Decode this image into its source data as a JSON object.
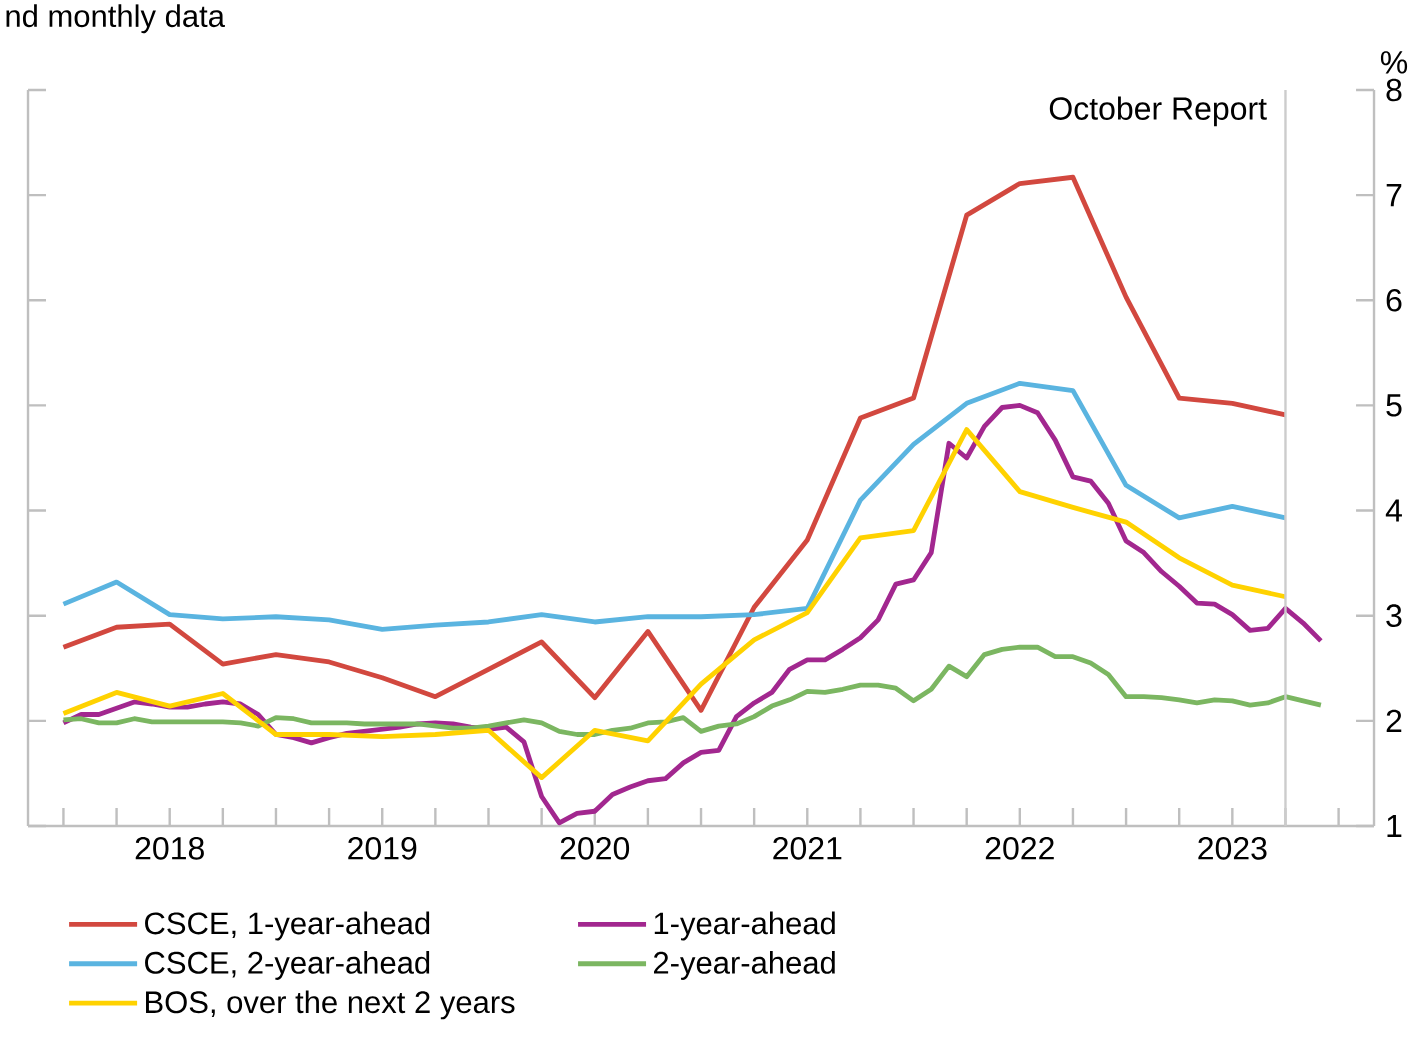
{
  "chart_data": {
    "type": "line",
    "subtitle": "nd monthly data",
    "ylabel": "%",
    "xlim": [
      "2017-11",
      "2024-03"
    ],
    "ylim": [
      1,
      8
    ],
    "yticks": [
      1,
      2,
      3,
      4,
      5,
      6,
      7,
      8
    ],
    "xticks": [
      {
        "value": "2018-01",
        "label": null
      },
      {
        "value": "2018-04",
        "label": null
      },
      {
        "value": "2018-07",
        "label": "2018"
      },
      {
        "value": "2018-10",
        "label": null
      },
      {
        "value": "2019-01",
        "label": null
      },
      {
        "value": "2019-04",
        "label": null
      },
      {
        "value": "2019-07",
        "label": "2019"
      },
      {
        "value": "2019-10",
        "label": null
      },
      {
        "value": "2020-01",
        "label": null
      },
      {
        "value": "2020-04",
        "label": null
      },
      {
        "value": "2020-07",
        "label": "2020"
      },
      {
        "value": "2020-10",
        "label": null
      },
      {
        "value": "2021-01",
        "label": null
      },
      {
        "value": "2021-04",
        "label": null
      },
      {
        "value": "2021-07",
        "label": "2021"
      },
      {
        "value": "2021-10",
        "label": null
      },
      {
        "value": "2022-01",
        "label": null
      },
      {
        "value": "2022-04",
        "label": null
      },
      {
        "value": "2022-07",
        "label": "2022"
      },
      {
        "value": "2022-10",
        "label": null
      },
      {
        "value": "2023-01",
        "label": null
      },
      {
        "value": "2023-04",
        "label": null
      },
      {
        "value": "2023-07",
        "label": "2023"
      },
      {
        "value": "2023-10",
        "label": null
      },
      {
        "value": "2024-01",
        "label": null
      }
    ],
    "grid": false,
    "legend": "bottom",
    "marker": "none",
    "line_style": "solid",
    "ref_lines": [
      {
        "axis": "x",
        "value": "2023-10",
        "label": "October Report",
        "color": "#cccccc"
      }
    ],
    "series": [
      {
        "name": "CSCE, 1-year-ahead",
        "color": "#d2483f",
        "x": [
          "2018-01",
          "2018-04",
          "2018-07",
          "2018-10",
          "2019-01",
          "2019-04",
          "2019-07",
          "2019-10",
          "2020-01",
          "2020-04",
          "2020-07",
          "2020-10",
          "2021-01",
          "2021-04",
          "2021-07",
          "2021-10",
          "2022-01",
          "2022-04",
          "2022-07",
          "2022-10",
          "2023-01",
          "2023-04",
          "2023-07",
          "2023-10"
        ],
        "values": [
          2.7,
          2.89,
          2.92,
          2.54,
          2.63,
          2.56,
          2.41,
          2.23,
          2.49,
          2.75,
          2.22,
          2.85,
          2.1,
          3.08,
          3.72,
          4.88,
          5.07,
          6.81,
          7.11,
          7.17,
          6.03,
          5.07,
          5.02,
          4.91
        ]
      },
      {
        "name": "1-year-ahead",
        "color": "#a2278f",
        "x": [
          "2018-01",
          "2018-02",
          "2018-03",
          "2018-04",
          "2018-05",
          "2018-06",
          "2018-07",
          "2018-08",
          "2018-09",
          "2018-10",
          "2018-11",
          "2018-12",
          "2019-01",
          "2019-02",
          "2019-03",
          "2019-04",
          "2019-05",
          "2019-06",
          "2019-07",
          "2019-08",
          "2019-09",
          "2019-10",
          "2019-11",
          "2019-12",
          "2020-01",
          "2020-02",
          "2020-03",
          "2020-04",
          "2020-05",
          "2020-06",
          "2020-07",
          "2020-08",
          "2020-09",
          "2020-10",
          "2020-11",
          "2020-12",
          "2021-01",
          "2021-02",
          "2021-03",
          "2021-04",
          "2021-05",
          "2021-06",
          "2021-07",
          "2021-08",
          "2021-09",
          "2021-10",
          "2021-11",
          "2021-12",
          "2022-01",
          "2022-02",
          "2022-03",
          "2022-04",
          "2022-05",
          "2022-06",
          "2022-07",
          "2022-08",
          "2022-09",
          "2022-10",
          "2022-11",
          "2022-12",
          "2023-01",
          "2023-02",
          "2023-03",
          "2023-04",
          "2023-05",
          "2023-06",
          "2023-07",
          "2023-08",
          "2023-09",
          "2023-10",
          "2023-11",
          "2023-12"
        ],
        "values": [
          1.98,
          2.06,
          2.06,
          2.12,
          2.18,
          2.16,
          2.13,
          2.13,
          2.16,
          2.18,
          2.16,
          2.06,
          1.87,
          1.84,
          1.79,
          1.84,
          1.88,
          1.9,
          1.92,
          1.94,
          1.97,
          1.98,
          1.97,
          1.94,
          1.92,
          1.94,
          1.8,
          1.28,
          1.03,
          1.12,
          1.14,
          1.3,
          1.37,
          1.43,
          1.45,
          1.6,
          1.7,
          1.72,
          2.04,
          2.17,
          2.27,
          2.49,
          2.58,
          2.58,
          2.68,
          2.79,
          2.96,
          3.3,
          3.34,
          3.6,
          4.64,
          4.5,
          4.8,
          4.98,
          5.0,
          4.93,
          4.67,
          4.32,
          4.28,
          4.07,
          3.71,
          3.6,
          3.42,
          3.28,
          3.12,
          3.11,
          3.01,
          2.86,
          2.88,
          3.07,
          2.93,
          2.76
        ]
      },
      {
        "name": "CSCE, 2-year-ahead",
        "color": "#5ab4e0",
        "x": [
          "2018-01",
          "2018-04",
          "2018-07",
          "2018-10",
          "2019-01",
          "2019-04",
          "2019-07",
          "2019-10",
          "2020-01",
          "2020-04",
          "2020-07",
          "2020-10",
          "2021-01",
          "2021-04",
          "2021-07",
          "2021-10",
          "2022-01",
          "2022-04",
          "2022-07",
          "2022-10",
          "2023-01",
          "2023-04",
          "2023-07",
          "2023-10"
        ],
        "values": [
          3.11,
          3.32,
          3.01,
          2.97,
          2.99,
          2.96,
          2.87,
          2.91,
          2.94,
          3.01,
          2.94,
          2.99,
          2.99,
          3.01,
          3.07,
          4.1,
          4.63,
          5.02,
          5.21,
          5.14,
          4.24,
          3.93,
          4.04,
          3.93
        ]
      },
      {
        "name": "2-year-ahead",
        "color": "#7bb661",
        "x": [
          "2018-01",
          "2018-02",
          "2018-03",
          "2018-04",
          "2018-05",
          "2018-06",
          "2018-07",
          "2018-08",
          "2018-09",
          "2018-10",
          "2018-11",
          "2018-12",
          "2019-01",
          "2019-02",
          "2019-03",
          "2019-04",
          "2019-05",
          "2019-06",
          "2019-07",
          "2019-08",
          "2019-09",
          "2019-10",
          "2019-11",
          "2019-12",
          "2020-01",
          "2020-02",
          "2020-03",
          "2020-04",
          "2020-05",
          "2020-06",
          "2020-07",
          "2020-08",
          "2020-09",
          "2020-10",
          "2020-11",
          "2020-12",
          "2021-01",
          "2021-02",
          "2021-03",
          "2021-04",
          "2021-05",
          "2021-06",
          "2021-07",
          "2021-08",
          "2021-09",
          "2021-10",
          "2021-11",
          "2021-12",
          "2022-01",
          "2022-02",
          "2022-03",
          "2022-04",
          "2022-05",
          "2022-06",
          "2022-07",
          "2022-08",
          "2022-09",
          "2022-10",
          "2022-11",
          "2022-12",
          "2023-01",
          "2023-02",
          "2023-03",
          "2023-04",
          "2023-05",
          "2023-06",
          "2023-07",
          "2023-08",
          "2023-09",
          "2023-10",
          "2023-11",
          "2023-12"
        ],
        "values": [
          2.01,
          2.02,
          1.98,
          1.98,
          2.02,
          1.99,
          1.99,
          1.99,
          1.99,
          1.99,
          1.98,
          1.95,
          2.03,
          2.02,
          1.98,
          1.98,
          1.98,
          1.97,
          1.97,
          1.97,
          1.97,
          1.95,
          1.93,
          1.93,
          1.95,
          1.98,
          2.01,
          1.98,
          1.9,
          1.87,
          1.87,
          1.91,
          1.93,
          1.98,
          1.99,
          2.03,
          1.9,
          1.95,
          1.97,
          2.04,
          2.14,
          2.2,
          2.28,
          2.27,
          2.3,
          2.34,
          2.34,
          2.31,
          2.19,
          2.3,
          2.52,
          2.42,
          2.63,
          2.68,
          2.7,
          2.7,
          2.61,
          2.61,
          2.55,
          2.44,
          2.23,
          2.23,
          2.22,
          2.2,
          2.17,
          2.2,
          2.19,
          2.15,
          2.17,
          2.23,
          2.19,
          2.15
        ]
      },
      {
        "name": "BOS, over the next 2 years",
        "color": "#ffd200",
        "x": [
          "2018-01",
          "2018-04",
          "2018-07",
          "2018-10",
          "2019-01",
          "2019-04",
          "2019-07",
          "2019-10",
          "2020-01",
          "2020-04",
          "2020-07",
          "2020-10",
          "2021-01",
          "2021-04",
          "2021-07",
          "2021-10",
          "2022-01",
          "2022-04",
          "2022-07",
          "2022-10",
          "2023-01",
          "2023-04",
          "2023-07",
          "2023-10"
        ],
        "values": [
          2.07,
          2.27,
          2.14,
          2.26,
          1.87,
          1.87,
          1.85,
          1.87,
          1.91,
          1.46,
          1.91,
          1.81,
          2.35,
          2.77,
          3.03,
          3.74,
          3.81,
          4.77,
          4.18,
          4.03,
          3.89,
          3.55,
          3.29,
          3.18
        ]
      }
    ]
  }
}
